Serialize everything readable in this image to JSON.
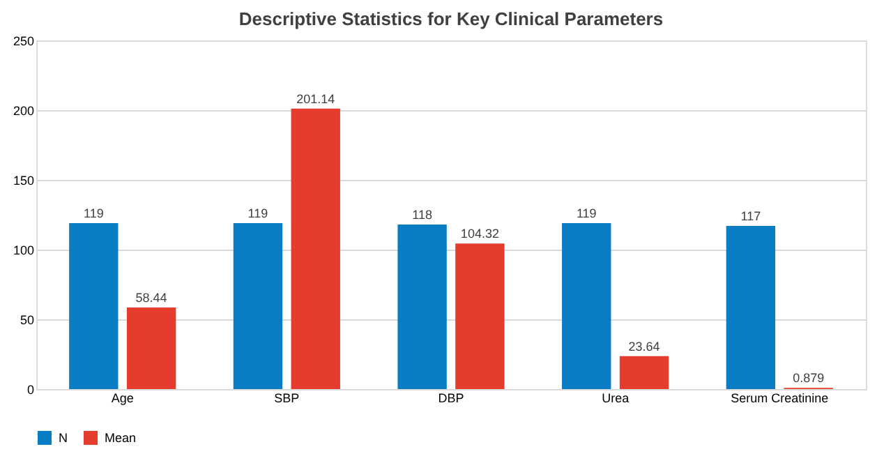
{
  "chart_data": {
    "type": "bar",
    "title": "Descriptive Statistics for Key Clinical Parameters",
    "categories": [
      "Age",
      "SBP",
      "DBP",
      "Urea",
      "Serum Creatinine"
    ],
    "series": [
      {
        "name": "N",
        "color": "#0a7cc4",
        "values": [
          119,
          119,
          118,
          119,
          117
        ]
      },
      {
        "name": "Mean",
        "color": "#e63c2e",
        "values": [
          58.44,
          201.14,
          104.32,
          23.64,
          0.879
        ]
      }
    ],
    "ylim": [
      0,
      250
    ],
    "yticks": [
      0,
      50,
      100,
      150,
      200,
      250
    ],
    "grid": "y",
    "legend": "bottom",
    "data_labels": true
  }
}
